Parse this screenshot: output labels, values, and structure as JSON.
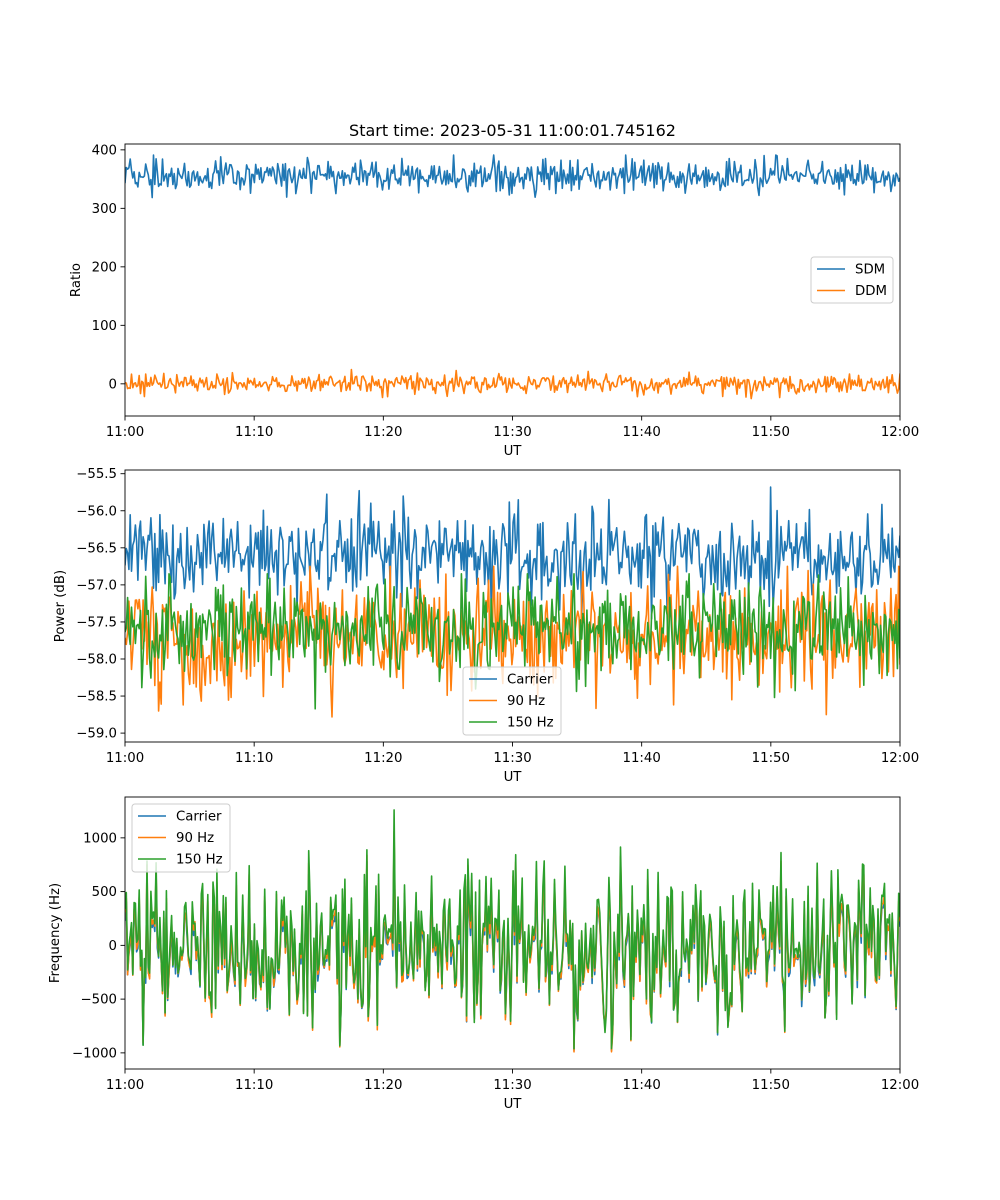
{
  "figure": {
    "title": "Start time: 2023-05-31 11:00:01.745162"
  },
  "chart_data": [
    {
      "type": "line",
      "title": "Start time: 2023-05-31 11:00:01.745162",
      "xlabel": "UT",
      "ylabel": "Ratio",
      "x_range": [
        "11:00",
        "12:00"
      ],
      "x_ticks": [
        "11:00",
        "11:10",
        "11:20",
        "11:30",
        "11:40",
        "11:50",
        "12:00"
      ],
      "ylim": [
        -55,
        410
      ],
      "y_ticks": [
        0,
        100,
        200,
        300,
        400
      ],
      "legend_position": "center-right",
      "grid": false,
      "series": [
        {
          "name": "SDM",
          "color": "#1f77b4",
          "mean": 355,
          "amplitude": 14,
          "min": 318,
          "max": 391
        },
        {
          "name": "DDM",
          "color": "#ff7f0e",
          "mean": 0,
          "amplitude": 8,
          "min": -33,
          "max": 25
        }
      ]
    },
    {
      "type": "line",
      "xlabel": "UT",
      "ylabel": "Power (dB)",
      "x_range": [
        "11:00",
        "12:00"
      ],
      "x_ticks": [
        "11:00",
        "11:10",
        "11:20",
        "11:30",
        "11:40",
        "11:50",
        "12:00"
      ],
      "ylim": [
        -59.12,
        -55.45
      ],
      "y_ticks": [
        -59.0,
        -58.5,
        -58.0,
        -57.5,
        -57.0,
        -56.5,
        -56.0,
        -55.5
      ],
      "y_tick_labels": [
        "−59.0",
        "−58.5",
        "−58.0",
        "−57.5",
        "−57.0",
        "−56.5",
        "−56.0",
        "−55.5"
      ],
      "legend_position": "lower-center",
      "grid": false,
      "series": [
        {
          "name": "Carrier",
          "color": "#1f77b4",
          "mean": -56.6,
          "amplitude": 0.3,
          "min": -57.5,
          "max": -55.6
        },
        {
          "name": "90 Hz",
          "color": "#ff7f0e",
          "mean": -57.7,
          "amplitude": 0.38,
          "min": -58.85,
          "max": -56.75
        },
        {
          "name": "150 Hz",
          "color": "#2ca02c",
          "mean": -57.6,
          "amplitude": 0.33,
          "min": -58.95,
          "max": -56.85
        }
      ]
    },
    {
      "type": "line",
      "xlabel": "UT",
      "ylabel": "Frequency (Hz)",
      "x_range": [
        "11:00",
        "12:00"
      ],
      "x_ticks": [
        "11:00",
        "11:10",
        "11:20",
        "11:30",
        "11:40",
        "11:50",
        "12:00"
      ],
      "ylim": [
        -1150,
        1380
      ],
      "y_ticks": [
        -1000,
        -500,
        0,
        500,
        1000
      ],
      "y_tick_labels": [
        "−1000",
        "−500",
        "0",
        "500",
        "1000"
      ],
      "legend_position": "upper-left",
      "grid": false,
      "series": [
        {
          "name": "Carrier",
          "color": "#1f77b4",
          "mean": -40,
          "amplitude": 330,
          "min": -1040,
          "max": 1000
        },
        {
          "name": "90 Hz",
          "color": "#ff7f0e",
          "mean": -15,
          "amplitude": 330,
          "min": -990,
          "max": 1060
        },
        {
          "name": "150 Hz",
          "color": "#2ca02c",
          "mean": 30,
          "amplitude": 330,
          "min": -960,
          "max": 1260
        }
      ]
    }
  ]
}
